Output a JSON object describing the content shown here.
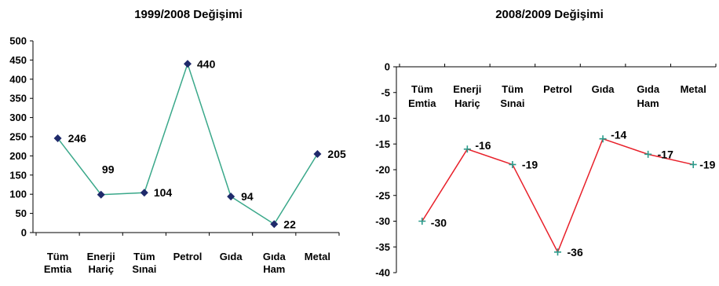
{
  "chart_data": [
    {
      "type": "line",
      "title": "1999/2008 Değişimi",
      "categories": [
        [
          "Tüm",
          "Emtia"
        ],
        [
          "Enerji",
          "Hariç"
        ],
        [
          "Tüm",
          "Sınai"
        ],
        [
          "Petrol"
        ],
        [
          "Gıda"
        ],
        [
          "Gıda",
          "Ham"
        ],
        [
          "Metal"
        ]
      ],
      "series": [
        {
          "values": [
            246,
            99,
            104,
            440,
            94,
            22,
            205
          ],
          "color": "#3aa88a",
          "marker": "diamond",
          "marker_color": "#1f2a6b"
        }
      ],
      "data_labels": [
        "246",
        "99",
        "104",
        "440",
        "94",
        "22",
        "205"
      ],
      "ylim": [
        0,
        500
      ],
      "yticks": [
        "0",
        "50",
        "100",
        "150",
        "200",
        "250",
        "300",
        "350",
        "400",
        "450",
        "500"
      ],
      "xlabel": "",
      "ylabel": "",
      "grid": false,
      "legend": "none"
    },
    {
      "type": "line",
      "title": "2008/2009 Değişimi",
      "categories": [
        [
          "Tüm",
          "Emtia"
        ],
        [
          "Enerji",
          "Hariç"
        ],
        [
          "Tüm",
          "Sınai"
        ],
        [
          "Petrol"
        ],
        [
          "Gıda"
        ],
        [
          "Gıda",
          "Ham"
        ],
        [
          "Metal"
        ]
      ],
      "series": [
        {
          "values": [
            -30,
            -16,
            -19,
            -36,
            -14,
            -17,
            -19
          ],
          "color": "#e8202a",
          "marker": "plus",
          "marker_color": "#2a9a8a"
        }
      ],
      "data_labels": [
        "-30",
        "-16",
        "-19",
        "-36",
        "-14",
        "-17",
        "-19"
      ],
      "ylim": [
        -40,
        0
      ],
      "yticks": [
        "0",
        "-5",
        "-10",
        "-15",
        "-20",
        "-25",
        "-30",
        "-35",
        "-40"
      ],
      "xlabel": "",
      "ylabel": "",
      "grid": false,
      "legend": "none",
      "category_axis_position": "top"
    }
  ]
}
